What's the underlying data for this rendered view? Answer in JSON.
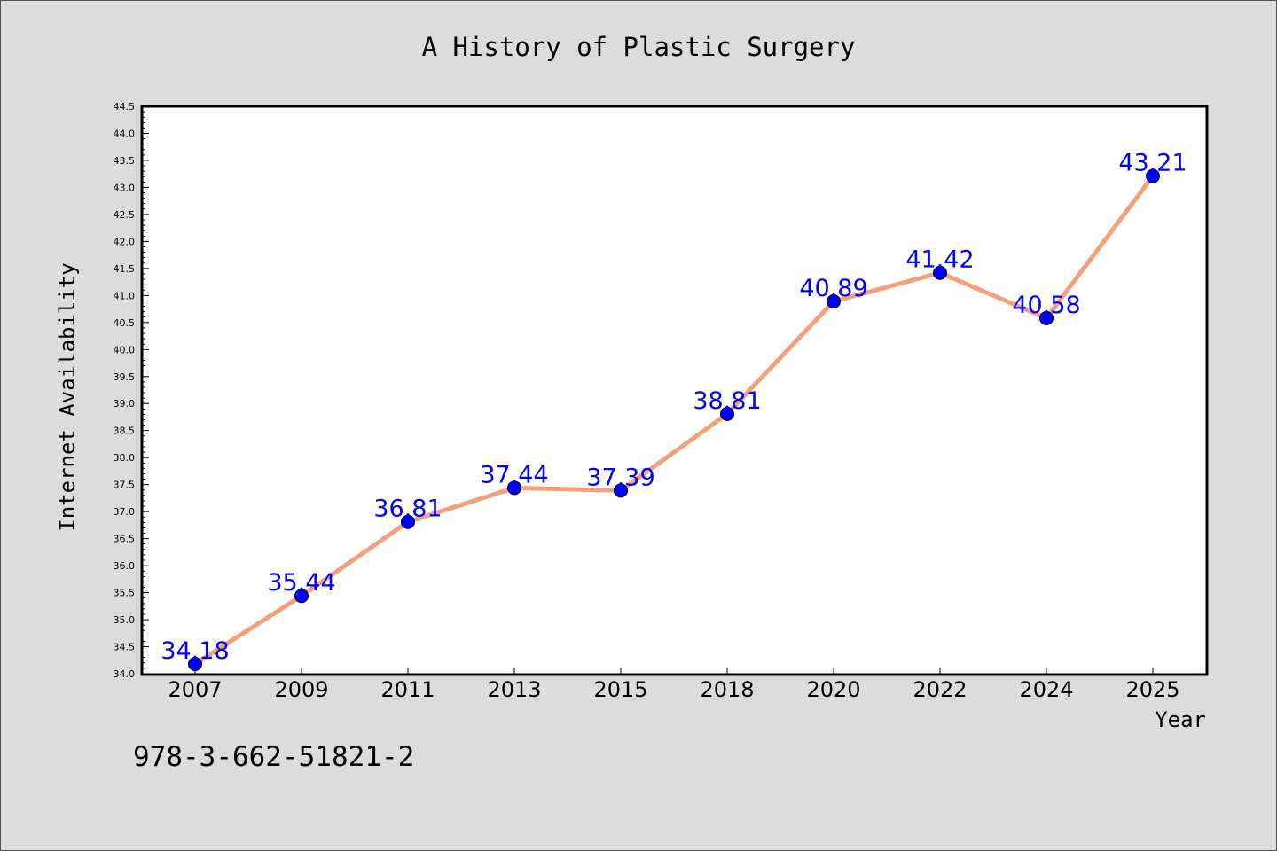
{
  "chart_data": {
    "type": "line",
    "title": "A History of Plastic Surgery",
    "xlabel": "Year",
    "ylabel": "Internet Availability",
    "categories": [
      "2007",
      "2009",
      "2011",
      "2013",
      "2015",
      "2018",
      "2020",
      "2022",
      "2024",
      "2025"
    ],
    "series": [
      {
        "values": [
          34.18,
          35.44,
          36.81,
          37.44,
          37.39,
          38.81,
          40.89,
          41.42,
          40.58,
          43.21
        ],
        "data_labels": [
          "34.18",
          "35.44",
          "36.81",
          "37.44",
          "37.39",
          "38.81",
          "40.89",
          "41.42",
          "40.58",
          "43.21"
        ],
        "line_color": "#f4a07c",
        "marker_color": "#0000ff"
      }
    ],
    "ylim": [
      34.0,
      44.5
    ],
    "yticks": [
      "34.0",
      "34.5",
      "35.0",
      "35.5",
      "36.0",
      "36.5",
      "37.0",
      "37.5",
      "38.0",
      "38.5",
      "39.0",
      "39.5",
      "40.0",
      "40.5",
      "41.0",
      "41.5",
      "42.0",
      "42.5",
      "43.0",
      "43.5",
      "44.0",
      "44.5"
    ],
    "grid": false,
    "legend": "none",
    "footnote": "978-3-662-51821-2",
    "colors": {
      "background": "#dcdcdc",
      "plot_background": "#ffffff",
      "label_text": "#0000ff",
      "axis": "#000000"
    }
  }
}
